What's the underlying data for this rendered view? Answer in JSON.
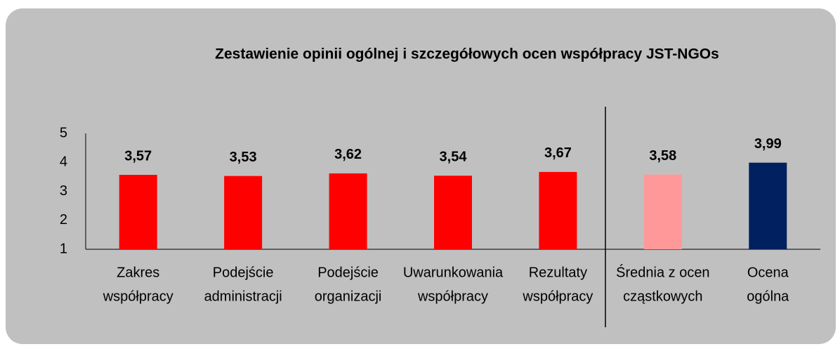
{
  "chart_data": {
    "type": "bar",
    "title": "Zestawienie opinii ogólnej i szczegółowych ocen współpracy JST-NGOs",
    "categories": [
      [
        "Zakres",
        "współpracy"
      ],
      [
        "Podejście",
        "administracji"
      ],
      [
        "Podejście",
        "organizacji"
      ],
      [
        "Uwarunkowania",
        "współpracy"
      ],
      [
        "Rezultaty",
        "współpracy"
      ],
      [
        "Średnia z ocen",
        "cząstkowych"
      ],
      [
        "Ocena",
        "ogólna"
      ]
    ],
    "values": [
      3.57,
      3.53,
      3.62,
      3.54,
      3.67,
      3.58,
      3.99
    ],
    "value_labels": [
      "3,57",
      "3,53",
      "3,62",
      "3,54",
      "3,67",
      "3,58",
      "3,99"
    ],
    "colors": [
      "#ff0000",
      "#ff0000",
      "#ff0000",
      "#ff0000",
      "#ff0000",
      "#ff9999",
      "#002060"
    ],
    "ylim": [
      1,
      5
    ],
    "yticks": [
      1,
      2,
      3,
      4,
      5
    ],
    "grid": false
  }
}
